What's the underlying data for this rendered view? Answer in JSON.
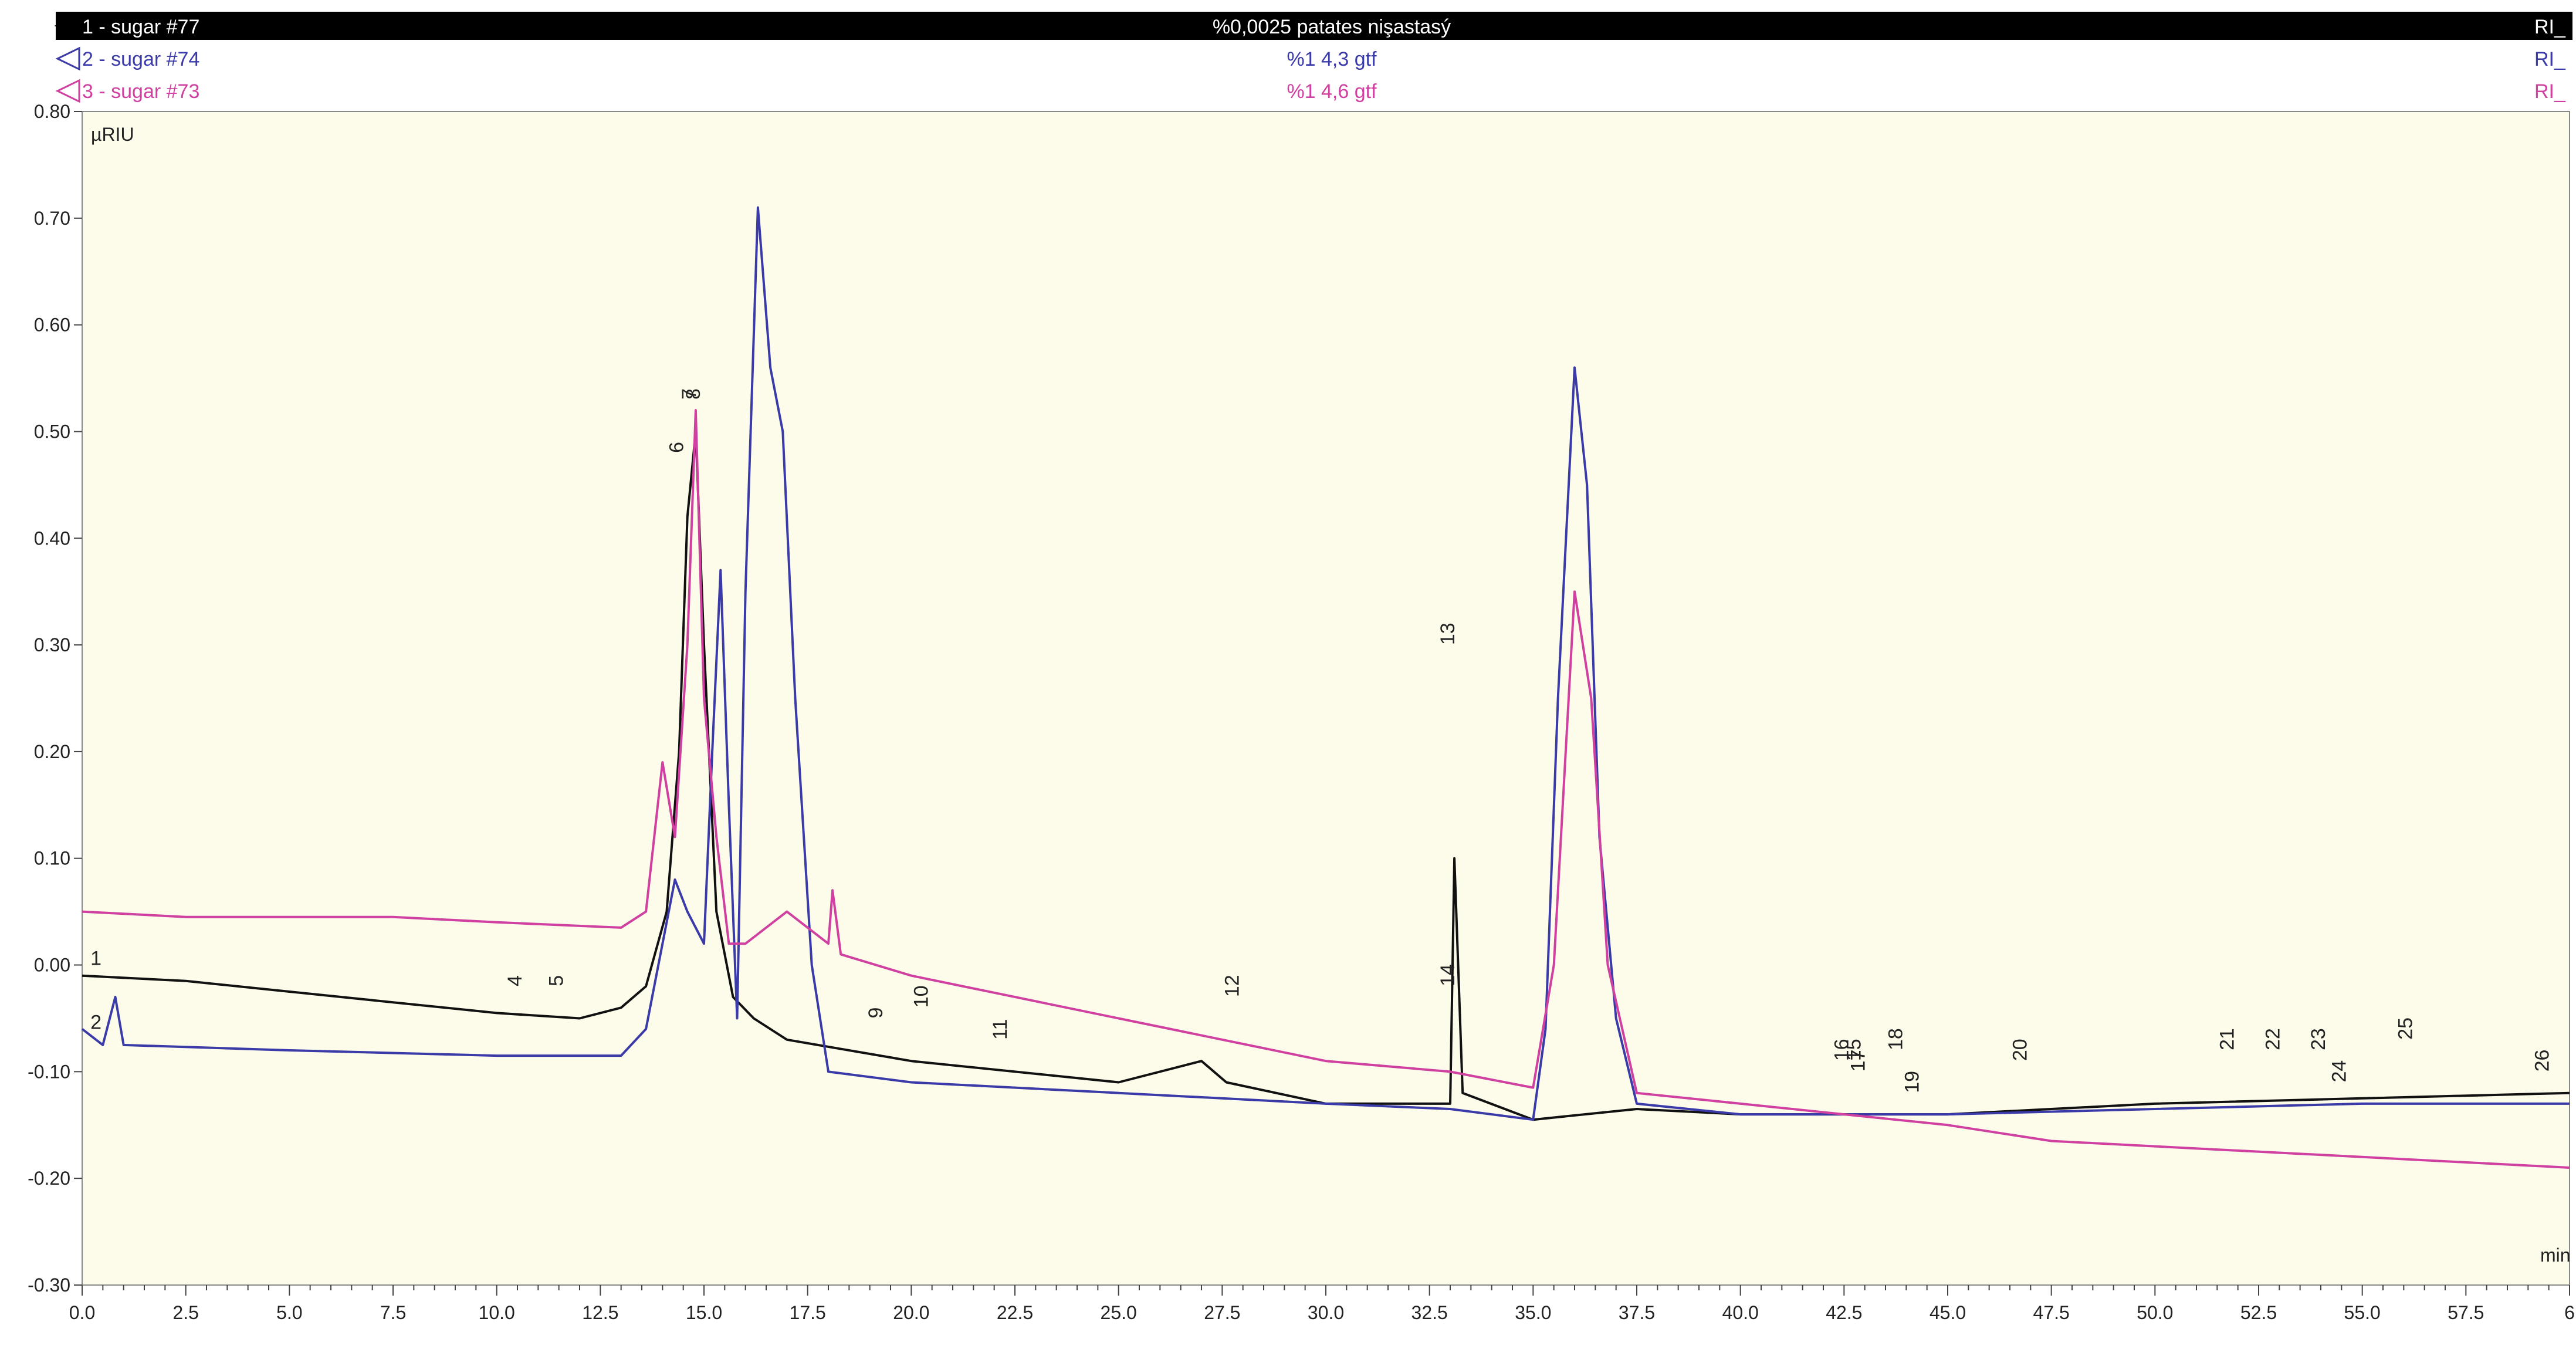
{
  "header": {
    "rows": [
      {
        "name": "1 - sugar #77",
        "center": "%0,0025 patates nişastasý",
        "right": "RI_",
        "color": "#000000",
        "bg": "#000000",
        "text_color": "#ffffff"
      },
      {
        "name": "2 - sugar #74",
        "center": "%1 4,3 gtf",
        "right": "RI_",
        "color": "#3a3aa8",
        "bg": "#ffffff",
        "text_color": "#3a3aa8"
      },
      {
        "name": "3 - sugar #73",
        "center": "%1 4,6 gtf",
        "right": "RI_",
        "color": "#d040a0",
        "bg": "#ffffff",
        "text_color": "#d040a0"
      }
    ]
  },
  "chart_data": {
    "type": "line",
    "title": "",
    "ylabel": "µRIU",
    "xlabel": "min",
    "xlim": [
      0,
      60
    ],
    "ylim": [
      -0.3,
      0.8
    ],
    "x_tick_labels": [
      "0.0",
      "2.5",
      "5.0",
      "7.5",
      "10.0",
      "12.5",
      "15.0",
      "17.5",
      "20.0",
      "22.5",
      "25.0",
      "27.5",
      "30.0",
      "32.5",
      "35.0",
      "37.5",
      "40.0",
      "42.5",
      "45.0",
      "47.5",
      "50.0",
      "52.5",
      "55.0",
      "57.5",
      "6"
    ],
    "y_tick_labels": [
      "0.80",
      "0.70",
      "0.60",
      "0.50",
      "0.40",
      "0.30",
      "0.20",
      "0.10",
      "0.00",
      "-0.10",
      "-0.20",
      "-0.30"
    ],
    "background_color": "#fdfbea",
    "series": [
      {
        "name": "1 - sugar #77",
        "color": "#111111",
        "points": [
          [
            0,
            -0.01
          ],
          [
            2.5,
            -0.015
          ],
          [
            5,
            -0.025
          ],
          [
            7.5,
            -0.035
          ],
          [
            10,
            -0.045
          ],
          [
            12,
            -0.05
          ],
          [
            13,
            -0.04
          ],
          [
            13.6,
            -0.02
          ],
          [
            14.1,
            0.05
          ],
          [
            14.4,
            0.2
          ],
          [
            14.6,
            0.42
          ],
          [
            14.8,
            0.5
          ],
          [
            15.0,
            0.3
          ],
          [
            15.3,
            0.05
          ],
          [
            15.7,
            -0.03
          ],
          [
            16.2,
            -0.05
          ],
          [
            17,
            -0.07
          ],
          [
            20,
            -0.09
          ],
          [
            25,
            -0.11
          ],
          [
            27,
            -0.09
          ],
          [
            27.6,
            -0.11
          ],
          [
            30,
            -0.13
          ],
          [
            33.0,
            -0.13
          ],
          [
            33.1,
            0.1
          ],
          [
            33.3,
            -0.12
          ],
          [
            35,
            -0.145
          ],
          [
            37.5,
            -0.135
          ],
          [
            40,
            -0.14
          ],
          [
            45,
            -0.14
          ],
          [
            50,
            -0.13
          ],
          [
            55,
            -0.125
          ],
          [
            60,
            -0.12
          ]
        ]
      },
      {
        "name": "2 - sugar #74",
        "color": "#3a3aa8",
        "points": [
          [
            0,
            -0.06
          ],
          [
            0.5,
            -0.075
          ],
          [
            0.8,
            -0.03
          ],
          [
            1,
            -0.075
          ],
          [
            5,
            -0.08
          ],
          [
            10,
            -0.085
          ],
          [
            13,
            -0.085
          ],
          [
            13.6,
            -0.06
          ],
          [
            14.0,
            0.02
          ],
          [
            14.3,
            0.08
          ],
          [
            14.6,
            0.05
          ],
          [
            15.0,
            0.02
          ],
          [
            15.2,
            0.2
          ],
          [
            15.4,
            0.37
          ],
          [
            15.6,
            0.15
          ],
          [
            15.8,
            -0.05
          ],
          [
            16.0,
            0.35
          ],
          [
            16.3,
            0.71
          ],
          [
            16.6,
            0.56
          ],
          [
            16.9,
            0.5
          ],
          [
            17.2,
            0.25
          ],
          [
            17.6,
            0.0
          ],
          [
            18.0,
            -0.1
          ],
          [
            20,
            -0.11
          ],
          [
            25,
            -0.12
          ],
          [
            30,
            -0.13
          ],
          [
            33,
            -0.135
          ],
          [
            35,
            -0.145
          ],
          [
            35.3,
            -0.06
          ],
          [
            35.6,
            0.25
          ],
          [
            36.0,
            0.56
          ],
          [
            36.3,
            0.45
          ],
          [
            36.6,
            0.12
          ],
          [
            37.0,
            -0.05
          ],
          [
            37.5,
            -0.13
          ],
          [
            40,
            -0.14
          ],
          [
            45,
            -0.14
          ],
          [
            50,
            -0.135
          ],
          [
            55,
            -0.13
          ],
          [
            60,
            -0.13
          ]
        ]
      },
      {
        "name": "3 - sugar #73",
        "color": "#d040a0",
        "points": [
          [
            0,
            0.05
          ],
          [
            2.5,
            0.045
          ],
          [
            5,
            0.045
          ],
          [
            7.5,
            0.045
          ],
          [
            10,
            0.04
          ],
          [
            13,
            0.035
          ],
          [
            13.6,
            0.05
          ],
          [
            14.0,
            0.19
          ],
          [
            14.3,
            0.12
          ],
          [
            14.6,
            0.3
          ],
          [
            14.8,
            0.52
          ],
          [
            15.0,
            0.25
          ],
          [
            15.3,
            0.12
          ],
          [
            15.6,
            0.02
          ],
          [
            16,
            0.02
          ],
          [
            17,
            0.05
          ],
          [
            18,
            0.02
          ],
          [
            18.1,
            0.07
          ],
          [
            18.3,
            0.01
          ],
          [
            20,
            -0.01
          ],
          [
            22.5,
            -0.03
          ],
          [
            25,
            -0.05
          ],
          [
            27.5,
            -0.07
          ],
          [
            30,
            -0.09
          ],
          [
            33,
            -0.1
          ],
          [
            35,
            -0.115
          ],
          [
            35.5,
            0.0
          ],
          [
            36.0,
            0.35
          ],
          [
            36.4,
            0.25
          ],
          [
            36.8,
            0.0
          ],
          [
            37.5,
            -0.12
          ],
          [
            40,
            -0.13
          ],
          [
            42.5,
            -0.14
          ],
          [
            45,
            -0.15
          ],
          [
            47.5,
            -0.165
          ],
          [
            50,
            -0.17
          ],
          [
            55,
            -0.18
          ],
          [
            60,
            -0.19
          ]
        ]
      }
    ],
    "peak_labels": [
      {
        "label": "1",
        "x": 0.2,
        "y": 0.0
      },
      {
        "label": "2",
        "x": 0.2,
        "y": -0.06
      },
      {
        "label": "4",
        "x": 10.6,
        "y": -0.02
      },
      {
        "label": "5",
        "x": 11.6,
        "y": -0.02
      },
      {
        "label": "6",
        "x": 14.5,
        "y": 0.48
      },
      {
        "label": "7",
        "x": 14.8,
        "y": 0.53
      },
      {
        "label": "8",
        "x": 14.9,
        "y": 0.53
      },
      {
        "label": "9",
        "x": 19.3,
        "y": -0.05
      },
      {
        "label": "10",
        "x": 20.4,
        "y": -0.04
      },
      {
        "label": "11",
        "x": 22.3,
        "y": -0.07
      },
      {
        "label": "12",
        "x": 27.9,
        "y": -0.03
      },
      {
        "label": "13",
        "x": 33.1,
        "y": 0.3
      },
      {
        "label": "14",
        "x": 33.1,
        "y": -0.02
      },
      {
        "label": "15",
        "x": 42.9,
        "y": -0.09
      },
      {
        "label": "16",
        "x": 42.6,
        "y": -0.09
      },
      {
        "label": "17",
        "x": 43.0,
        "y": -0.1
      },
      {
        "label": "18",
        "x": 43.9,
        "y": -0.08
      },
      {
        "label": "19",
        "x": 44.3,
        "y": -0.12
      },
      {
        "label": "20",
        "x": 46.9,
        "y": -0.09
      },
      {
        "label": "21",
        "x": 51.9,
        "y": -0.08
      },
      {
        "label": "22",
        "x": 53.0,
        "y": -0.08
      },
      {
        "label": "23",
        "x": 54.1,
        "y": -0.08
      },
      {
        "label": "24",
        "x": 54.6,
        "y": -0.11
      },
      {
        "label": "25",
        "x": 56.2,
        "y": -0.07
      },
      {
        "label": "26",
        "x": 59.5,
        "y": -0.1
      }
    ]
  }
}
